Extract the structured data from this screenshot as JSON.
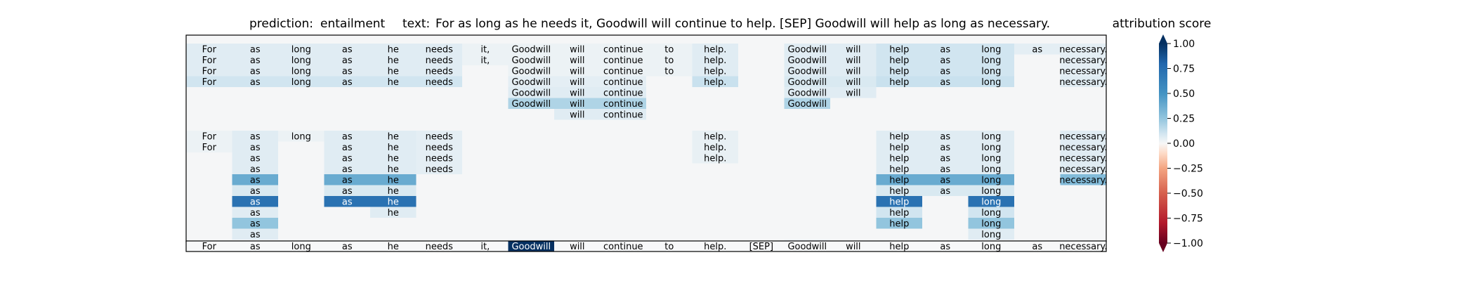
{
  "chart_data": {
    "type": "heatmap",
    "title_prediction_label": "prediction:",
    "title_prediction_value": "entailment",
    "title_text_label": "text:",
    "title_text_value": "For as long as he needs it, Goodwill will continue to help. [SEP] Goodwill will help as long as necessary.",
    "colorbar_title": "attribution score",
    "colorbar_range": [
      -1.0,
      1.0
    ],
    "colorbar_ticks": [
      "1.00",
      "0.75",
      "0.50",
      "0.25",
      "0.00",
      "−0.25",
      "−0.50",
      "−0.75",
      "−1.00"
    ],
    "tokens": [
      "For",
      "as",
      "long",
      "as",
      "he",
      "needs",
      "it,",
      "Goodwill",
      "will",
      "continue",
      "to",
      "help.",
      "[SEP]",
      "Goodwill",
      "will",
      "help",
      "as",
      "long",
      "as",
      "necessary."
    ],
    "rows": [
      {
        "words": [
          0,
          1,
          2,
          3,
          4,
          5,
          6,
          7,
          8,
          9,
          10,
          11,
          13,
          14,
          15,
          16,
          17,
          18,
          19
        ],
        "values": [
          0.06,
          0.06,
          0.06,
          0.06,
          0.06,
          0.06,
          0.03,
          0.03,
          0.03,
          0.03,
          0.03,
          0.06,
          0.06,
          0.06,
          0.1,
          0.1,
          0.1,
          0.05,
          0.05
        ]
      },
      {
        "words": [
          0,
          1,
          2,
          3,
          4,
          5,
          6,
          7,
          8,
          9,
          10,
          11,
          13,
          14,
          15,
          16,
          17,
          19
        ],
        "values": [
          0.06,
          0.06,
          0.06,
          0.06,
          0.06,
          0.06,
          0.03,
          0.03,
          0.03,
          0.03,
          0.03,
          0.06,
          0.06,
          0.06,
          0.1,
          0.1,
          0.1,
          0.05
        ]
      },
      {
        "words": [
          0,
          1,
          2,
          3,
          4,
          5,
          7,
          8,
          9,
          10,
          11,
          13,
          14,
          15,
          16,
          17,
          19
        ],
        "values": [
          0.06,
          0.06,
          0.06,
          0.06,
          0.06,
          0.06,
          0.03,
          0.03,
          0.03,
          0.03,
          0.06,
          0.06,
          0.06,
          0.1,
          0.1,
          0.1,
          0.05
        ]
      },
      {
        "words": [
          0,
          1,
          2,
          3,
          4,
          5,
          7,
          8,
          9,
          11,
          13,
          14,
          15,
          16,
          17,
          19
        ],
        "values": [
          0.1,
          0.1,
          0.1,
          0.1,
          0.1,
          0.1,
          0.05,
          0.05,
          0.05,
          0.12,
          0.08,
          0.08,
          0.12,
          0.12,
          0.12,
          0.06
        ]
      },
      {
        "words": [
          7,
          8,
          9,
          13,
          14
        ],
        "values": [
          0.06,
          0.06,
          0.06,
          0.06,
          0.06
        ]
      },
      {
        "words": [
          7,
          8,
          9,
          13
        ],
        "values": [
          0.18,
          0.18,
          0.18,
          0.18
        ]
      },
      {
        "words": [
          8,
          9
        ],
        "values": [
          0.06,
          0.06
        ]
      },
      {
        "words": [],
        "values": []
      },
      {
        "words": [
          0,
          1,
          2,
          3,
          4,
          5,
          11,
          15,
          16,
          17,
          19
        ],
        "values": [
          0.03,
          0.06,
          0.03,
          0.06,
          0.06,
          0.05,
          0.04,
          0.06,
          0.06,
          0.06,
          0.06
        ]
      },
      {
        "words": [
          0,
          1,
          3,
          4,
          5,
          11,
          15,
          16,
          17,
          19
        ],
        "values": [
          0.03,
          0.06,
          0.06,
          0.06,
          0.05,
          0.04,
          0.06,
          0.06,
          0.06,
          0.06
        ]
      },
      {
        "words": [
          1,
          3,
          4,
          5,
          11,
          15,
          16,
          17,
          19
        ],
        "values": [
          0.06,
          0.06,
          0.06,
          0.05,
          0.04,
          0.06,
          0.06,
          0.06,
          0.06
        ]
      },
      {
        "words": [
          1,
          3,
          4,
          5,
          15,
          16,
          17,
          19
        ],
        "values": [
          0.06,
          0.06,
          0.06,
          0.05,
          0.06,
          0.06,
          0.06,
          0.06
        ]
      },
      {
        "words": [
          1,
          3,
          4,
          15,
          16,
          17,
          19
        ],
        "values": [
          0.38,
          0.38,
          0.38,
          0.38,
          0.38,
          0.38,
          0.3
        ]
      },
      {
        "words": [
          1,
          3,
          4,
          15,
          16,
          17
        ],
        "values": [
          0.08,
          0.08,
          0.08,
          0.08,
          0.08,
          0.08
        ]
      },
      {
        "words": [
          1,
          3,
          4,
          15,
          17
        ],
        "values": [
          0.72,
          0.72,
          0.72,
          0.72,
          0.72
        ]
      },
      {
        "words": [
          1,
          4,
          15,
          17
        ],
        "values": [
          0.06,
          0.06,
          0.1,
          0.1
        ]
      },
      {
        "words": [
          1,
          15,
          17
        ],
        "values": [
          0.25,
          0.25,
          0.25
        ]
      },
      {
        "words": [
          1,
          17
        ],
        "values": [
          0.06,
          0.06
        ]
      },
      {
        "words": [
          7,
          13
        ],
        "values": [
          0.02,
          0.02
        ]
      }
    ],
    "input_row": {
      "words": [
        0,
        1,
        2,
        3,
        4,
        5,
        6,
        7,
        8,
        9,
        10,
        11,
        12,
        13,
        14,
        15,
        16,
        17,
        18,
        19
      ],
      "values": [
        0,
        0,
        0,
        0,
        0,
        0,
        0,
        1.0,
        0,
        0,
        0,
        0,
        0,
        0,
        0,
        0,
        0,
        0,
        0,
        0
      ]
    }
  }
}
